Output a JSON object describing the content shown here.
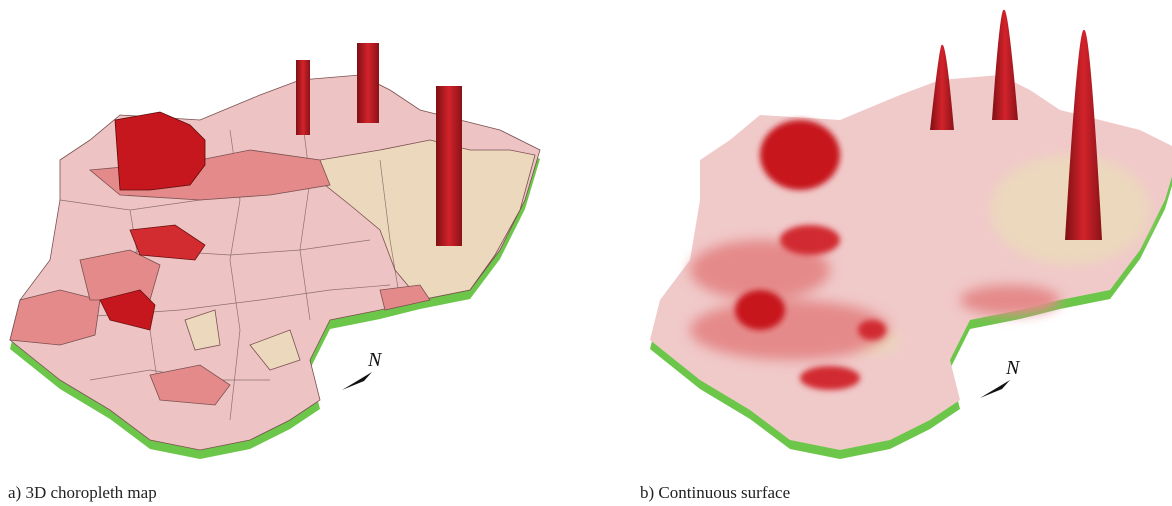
{
  "panels": [
    {
      "caption": "a) 3D choropleth map",
      "north": "N"
    },
    {
      "caption": "b) Continuous surface",
      "north": "N"
    }
  ]
}
